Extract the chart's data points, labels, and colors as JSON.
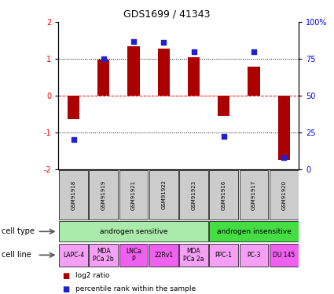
{
  "title": "GDS1699 / 41343",
  "samples": [
    "GSM91918",
    "GSM91919",
    "GSM91921",
    "GSM91922",
    "GSM91923",
    "GSM91916",
    "GSM91917",
    "GSM91920"
  ],
  "log2_ratio": [
    -0.65,
    0.97,
    1.35,
    1.28,
    1.05,
    -0.55,
    0.78,
    -1.75
  ],
  "percentile_rank": [
    20,
    75,
    87,
    86,
    80,
    22,
    80,
    8
  ],
  "ylim_left": [
    -2,
    2
  ],
  "ylim_right": [
    0,
    100
  ],
  "yticks_left": [
    -2,
    -1,
    0,
    1,
    2
  ],
  "ytick_labels_left": [
    "-2",
    "-1",
    "0",
    "1",
    "2"
  ],
  "yticks_right": [
    0,
    25,
    50,
    75,
    100
  ],
  "ytick_labels_right": [
    "0",
    "25",
    "50",
    "75",
    "100%"
  ],
  "bar_color": "#aa0000",
  "dot_color": "#2222cc",
  "cell_type_groups": [
    {
      "label": "androgen sensitive",
      "start": 0,
      "end": 5,
      "color": "#aaeaaa"
    },
    {
      "label": "androgen insensitive",
      "start": 5,
      "end": 8,
      "color": "#44dd44"
    }
  ],
  "cell_lines": [
    {
      "label": "LAPC-4",
      "start": 0,
      "end": 1,
      "color": "#f4a0f4"
    },
    {
      "label": "MDA\nPCa 2b",
      "start": 1,
      "end": 2,
      "color": "#f4a0f4"
    },
    {
      "label": "LNCa\nP",
      "start": 2,
      "end": 3,
      "color": "#ee60ee"
    },
    {
      "label": "22Rv1",
      "start": 3,
      "end": 4,
      "color": "#ee60ee"
    },
    {
      "label": "MDA\nPCa 2a",
      "start": 4,
      "end": 5,
      "color": "#f4a0f4"
    },
    {
      "label": "PPC-1",
      "start": 5,
      "end": 6,
      "color": "#f4a0f4"
    },
    {
      "label": "PC-3",
      "start": 6,
      "end": 7,
      "color": "#f4a0f4"
    },
    {
      "label": "DU 145",
      "start": 7,
      "end": 8,
      "color": "#ee60ee"
    }
  ],
  "sample_box_color": "#cccccc",
  "left_label_cell_type": "cell type",
  "left_label_cell_line": "cell line",
  "legend_log2": "log2 ratio",
  "legend_pct": "percentile rank within the sample",
  "bar_width": 0.4,
  "dot_size": 25
}
